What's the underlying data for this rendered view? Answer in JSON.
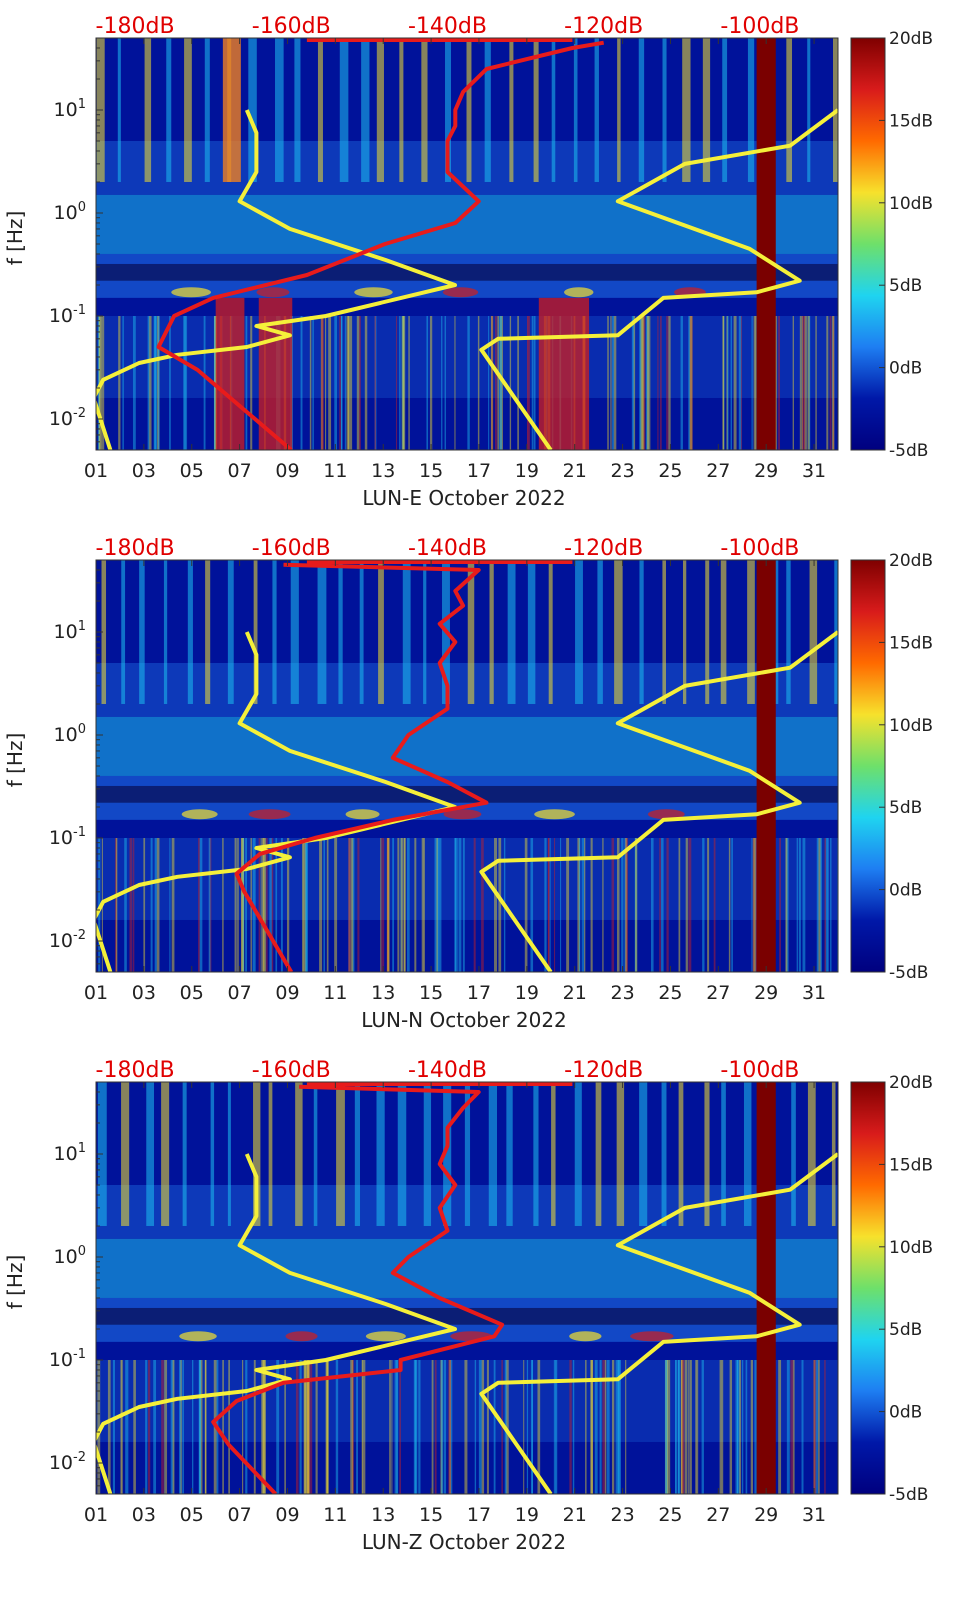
{
  "panel_list": [
    "E",
    "N",
    "Z"
  ],
  "colors": {
    "background": "#00129a",
    "dark_band": "#0a1460",
    "light_band": "#1ec0f0",
    "mid_blue": "#1a5fd8",
    "yellow_stripe": "#f5e12c",
    "red_band": "#d01e1e",
    "saturated": "#7a0000",
    "psd_curve": "#e81b1b",
    "noise_model": "#f5f03a",
    "top_label": "#e00000",
    "axis_text": "#222222"
  },
  "colorbar": {
    "ticks": [
      "20dB",
      "15dB",
      "10dB",
      "5dB",
      "0dB",
      "-5dB"
    ],
    "stops": [
      "#7f0000",
      "#d81b1b",
      "#ff6a00",
      "#f7e12c",
      "#6ee06a",
      "#1fd4f0",
      "#1e7ef2",
      "#0018a8",
      "#00007f"
    ]
  },
  "chart_data": [
    {
      "type": "heatmap",
      "title": "",
      "xlabel": "LUN-E October 2022",
      "ylabel": "f [Hz]",
      "x_ticks": [
        "01",
        "03",
        "05",
        "07",
        "09",
        "11",
        "13",
        "15",
        "17",
        "19",
        "21",
        "23",
        "25",
        "27",
        "29",
        "31"
      ],
      "xlim": [
        1,
        32
      ],
      "y_ticks": [
        "10^-2",
        "10^-1",
        "10^0",
        "10^1"
      ],
      "ylim": [
        0.005,
        50
      ],
      "yscale": "log",
      "top_axis_labels": [
        "-180dB",
        "-160dB",
        "-140dB",
        "-120dB",
        "-100dB"
      ],
      "top_axis_range_dB": [
        -185,
        -90
      ],
      "colorbar_range_dB": [
        -5,
        20
      ],
      "series": [
        {
          "color": "#f5f03a",
          "points": [
            [
              1.6,
              0.005
            ],
            [
              0.9,
              0.016
            ],
            [
              1.3,
              0.024
            ],
            [
              2.8,
              0.035
            ],
            [
              4.4,
              0.042
            ],
            [
              7.3,
              0.05
            ],
            [
              9.1,
              0.065
            ],
            [
              7.7,
              0.08
            ],
            [
              10.6,
              0.1
            ],
            [
              16,
              0.2
            ],
            [
              13.1,
              0.35
            ],
            [
              9.1,
              0.7
            ],
            [
              7,
              1.3
            ],
            [
              7.7,
              2.5
            ],
            [
              7.7,
              6
            ],
            [
              7.3,
              10
            ]
          ]
        },
        {
          "color": "#f5f03a",
          "points": [
            [
              20,
              0.005
            ],
            [
              17.1,
              0.047
            ],
            [
              17.8,
              0.06
            ],
            [
              22.8,
              0.065
            ],
            [
              24.7,
              0.15
            ],
            [
              28.6,
              0.17
            ],
            [
              30.4,
              0.22
            ],
            [
              28.3,
              0.45
            ],
            [
              22.8,
              1.3
            ],
            [
              25.6,
              3
            ],
            [
              30,
              4.5
            ],
            [
              32,
              10
            ]
          ]
        },
        {
          "color": "#e81b1b",
          "points": [
            [
              -160,
              0.005
            ],
            [
              -172,
              0.03
            ],
            [
              -177,
              0.05
            ],
            [
              -175,
              0.1
            ],
            [
              -170,
              0.15
            ],
            [
              -158,
              0.25
            ],
            [
              -148,
              0.5
            ],
            [
              -139,
              0.8
            ],
            [
              -136,
              1.3
            ],
            [
              -140,
              2.5
            ],
            [
              -140,
              5
            ],
            [
              -139,
              7
            ],
            [
              -139,
              10
            ],
            [
              -138,
              15
            ],
            [
              -135,
              25
            ],
            [
              -124,
              40
            ],
            [
              -120,
              45
            ]
          ]
        }
      ]
    },
    {
      "type": "heatmap",
      "title": "",
      "xlabel": "LUN-N October 2022",
      "ylabel": "f [Hz]",
      "x_ticks": [
        "01",
        "03",
        "05",
        "07",
        "09",
        "11",
        "13",
        "15",
        "17",
        "19",
        "21",
        "23",
        "25",
        "27",
        "29",
        "31"
      ],
      "xlim": [
        1,
        32
      ],
      "y_ticks": [
        "10^-2",
        "10^-1",
        "10^0",
        "10^1"
      ],
      "ylim": [
        0.005,
        50
      ],
      "yscale": "log",
      "top_axis_labels": [
        "-180dB",
        "-160dB",
        "-140dB",
        "-120dB",
        "-100dB"
      ],
      "top_axis_range_dB": [
        -185,
        -90
      ],
      "colorbar_range_dB": [
        -5,
        20
      ],
      "series": [
        {
          "color": "#f5f03a",
          "points": [
            [
              1.6,
              0.005
            ],
            [
              0.9,
              0.016
            ],
            [
              1.3,
              0.024
            ],
            [
              2.8,
              0.035
            ],
            [
              4.4,
              0.042
            ],
            [
              7.3,
              0.05
            ],
            [
              9.1,
              0.065
            ],
            [
              7.7,
              0.08
            ],
            [
              10.6,
              0.1
            ],
            [
              16,
              0.2
            ],
            [
              13.1,
              0.35
            ],
            [
              9.1,
              0.7
            ],
            [
              7,
              1.3
            ],
            [
              7.7,
              2.5
            ],
            [
              7.7,
              6
            ],
            [
              7.3,
              10
            ]
          ]
        },
        {
          "color": "#f5f03a",
          "points": [
            [
              20,
              0.005
            ],
            [
              17.1,
              0.047
            ],
            [
              17.8,
              0.06
            ],
            [
              22.8,
              0.065
            ],
            [
              24.7,
              0.15
            ],
            [
              28.6,
              0.17
            ],
            [
              30.4,
              0.22
            ],
            [
              28.3,
              0.45
            ],
            [
              22.8,
              1.3
            ],
            [
              25.6,
              3
            ],
            [
              30,
              4.5
            ],
            [
              32,
              10
            ]
          ]
        },
        {
          "color": "#e81b1b",
          "points": [
            [
              -160,
              0.005
            ],
            [
              -166,
              0.03
            ],
            [
              -167,
              0.045
            ],
            [
              -164,
              0.07
            ],
            [
              -157,
              0.1
            ],
            [
              -147,
              0.15
            ],
            [
              -135,
              0.22
            ],
            [
              -140,
              0.35
            ],
            [
              -147,
              0.6
            ],
            [
              -145,
              1
            ],
            [
              -140,
              1.8
            ],
            [
              -140,
              3
            ],
            [
              -141,
              5
            ],
            [
              -139,
              8
            ],
            [
              -141,
              12
            ],
            [
              -138,
              18
            ],
            [
              -139,
              25
            ],
            [
              -136,
              40
            ],
            [
              -161,
              45
            ]
          ]
        }
      ]
    },
    {
      "type": "heatmap",
      "title": "",
      "xlabel": "LUN-Z October 2022",
      "ylabel": "f [Hz]",
      "x_ticks": [
        "01",
        "03",
        "05",
        "07",
        "09",
        "11",
        "13",
        "15",
        "17",
        "19",
        "21",
        "23",
        "25",
        "27",
        "29",
        "31"
      ],
      "xlim": [
        1,
        32
      ],
      "y_ticks": [
        "10^-2",
        "10^-1",
        "10^0",
        "10^1"
      ],
      "ylim": [
        0.005,
        50
      ],
      "yscale": "log",
      "top_axis_labels": [
        "-180dB",
        "-160dB",
        "-140dB",
        "-120dB",
        "-100dB"
      ],
      "top_axis_range_dB": [
        -185,
        -90
      ],
      "colorbar_range_dB": [
        -5,
        20
      ],
      "series": [
        {
          "color": "#f5f03a",
          "points": [
            [
              1.6,
              0.005
            ],
            [
              0.9,
              0.016
            ],
            [
              1.3,
              0.024
            ],
            [
              2.8,
              0.035
            ],
            [
              4.4,
              0.042
            ],
            [
              7.3,
              0.05
            ],
            [
              9.1,
              0.065
            ],
            [
              7.7,
              0.08
            ],
            [
              10.6,
              0.1
            ],
            [
              16,
              0.2
            ],
            [
              13.1,
              0.35
            ],
            [
              9.1,
              0.7
            ],
            [
              7,
              1.3
            ],
            [
              7.7,
              2.5
            ],
            [
              7.7,
              6
            ],
            [
              7.3,
              10
            ]
          ]
        },
        {
          "color": "#f5f03a",
          "points": [
            [
              20,
              0.005
            ],
            [
              17.1,
              0.047
            ],
            [
              17.8,
              0.06
            ],
            [
              22.8,
              0.065
            ],
            [
              24.7,
              0.15
            ],
            [
              28.6,
              0.17
            ],
            [
              30.4,
              0.22
            ],
            [
              28.3,
              0.45
            ],
            [
              22.8,
              1.3
            ],
            [
              25.6,
              3
            ],
            [
              30,
              4.5
            ],
            [
              32,
              10
            ]
          ]
        },
        {
          "color": "#e81b1b",
          "points": [
            [
              -162,
              0.005
            ],
            [
              -168,
              0.015
            ],
            [
              -170,
              0.025
            ],
            [
              -167,
              0.04
            ],
            [
              -161,
              0.06
            ],
            [
              -146,
              0.08
            ],
            [
              -146,
              0.1
            ],
            [
              -134,
              0.17
            ],
            [
              -133,
              0.22
            ],
            [
              -141,
              0.4
            ],
            [
              -147,
              0.7
            ],
            [
              -145,
              1
            ],
            [
              -140,
              1.8
            ],
            [
              -141,
              3
            ],
            [
              -139,
              5
            ],
            [
              -141,
              8
            ],
            [
              -140,
              12
            ],
            [
              -140,
              18
            ],
            [
              -138,
              28
            ],
            [
              -136,
              40
            ],
            [
              -159,
              45
            ]
          ]
        }
      ]
    }
  ]
}
